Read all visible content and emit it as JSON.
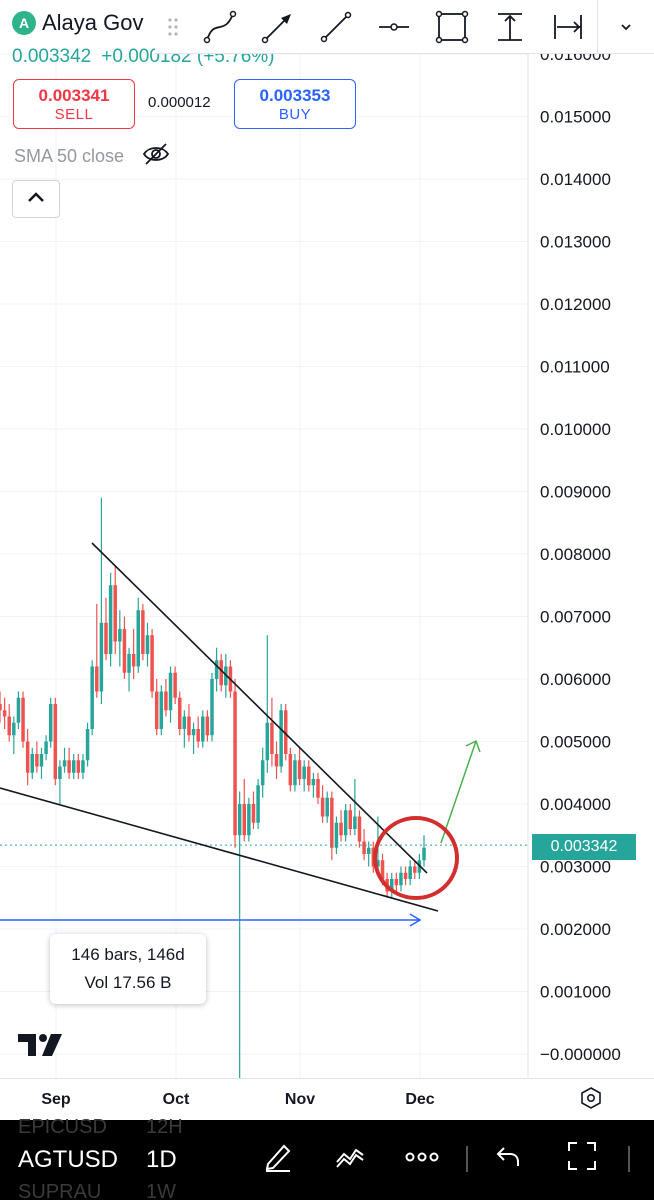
{
  "header": {
    "logo_letter": "A",
    "symbol_name": "Alaya Gov",
    "last_price": "0.003342",
    "change": "+0.000182 (+5.76%)",
    "sell": {
      "price": "0.003341",
      "label": "SELL"
    },
    "spread": "0.000012",
    "buy": {
      "price": "0.003353",
      "label": "BUY"
    },
    "indicator_label": "SMA 50 close"
  },
  "toolbar": {
    "tools": [
      "trend-line-tool",
      "arrow-tool",
      "ray-tool",
      "horizontal-line-tool",
      "rectangle-tool",
      "price-range-tool",
      "date-range-tool"
    ]
  },
  "price_axis": {
    "ticks": [
      "0.016000",
      "0.015000",
      "0.014000",
      "0.013000",
      "0.012000",
      "0.011000",
      "0.010000",
      "0.009000",
      "0.008000",
      "0.007000",
      "0.006000",
      "0.005000",
      "0.004000",
      "0.003000",
      "0.002000",
      "0.001000",
      "−0.000000"
    ],
    "current_price_label": "0.003342"
  },
  "time_axis": {
    "months": [
      "Sep",
      "Oct",
      "Nov",
      "Dec"
    ]
  },
  "measurement": {
    "bars": "146 bars, 146d",
    "volume": "Vol 17.56 B"
  },
  "bottom_bar": {
    "symbol": "AGTUSD",
    "interval": "1D",
    "ghost_above_symbol": "EPICUSD",
    "ghost_above_interval": "12H",
    "ghost_below_symbol": "SUPRAU",
    "ghost_below_interval": "1W"
  },
  "colors": {
    "up": "#26a69a",
    "down": "#ef5350",
    "highlight_circle": "#d32f2f",
    "projection_arrow": "#4caf50",
    "measure_arrow": "#2962ff"
  },
  "chart_data": {
    "type": "candlestick",
    "y_range": [
      -0.0001,
      0.0161
    ],
    "current_price": 0.003342,
    "price_levels": [
      0.016,
      0.015,
      0.014,
      0.013,
      0.012,
      0.011,
      0.01,
      0.009,
      0.008,
      0.007,
      0.006,
      0.005,
      0.004,
      0.003,
      0.002,
      0.001,
      0.0
    ],
    "candles": [
      [
        0.0056,
        0.0058,
        0.0053,
        0.0055
      ],
      [
        0.0055,
        0.0057,
        0.0052,
        0.0054
      ],
      [
        0.0054,
        0.0056,
        0.005,
        0.0051
      ],
      [
        0.0051,
        0.0054,
        0.0048,
        0.0053
      ],
      [
        0.0053,
        0.0058,
        0.0052,
        0.0057
      ],
      [
        0.0057,
        0.0058,
        0.0049,
        0.005
      ],
      [
        0.005,
        0.0052,
        0.0043,
        0.0045
      ],
      [
        0.0045,
        0.0049,
        0.0044,
        0.0048
      ],
      [
        0.0048,
        0.005,
        0.0045,
        0.0046
      ],
      [
        0.0046,
        0.0049,
        0.0044,
        0.0048
      ],
      [
        0.0048,
        0.0051,
        0.0047,
        0.005
      ],
      [
        0.005,
        0.0057,
        0.0049,
        0.0056
      ],
      [
        0.0056,
        0.0057,
        0.0043,
        0.0044
      ],
      [
        0.0044,
        0.0047,
        0.004,
        0.0046
      ],
      [
        0.0046,
        0.0049,
        0.0045,
        0.0047
      ],
      [
        0.0047,
        0.0049,
        0.0044,
        0.0045
      ],
      [
        0.0045,
        0.0048,
        0.0044,
        0.0047
      ],
      [
        0.0047,
        0.0048,
        0.0044,
        0.0045
      ],
      [
        0.0045,
        0.0048,
        0.0044,
        0.0047
      ],
      [
        0.0047,
        0.0053,
        0.0046,
        0.0052
      ],
      [
        0.0052,
        0.0063,
        0.0051,
        0.0062
      ],
      [
        0.0062,
        0.0072,
        0.0057,
        0.0058
      ],
      [
        0.0058,
        0.0089,
        0.0056,
        0.0069
      ],
      [
        0.0069,
        0.0073,
        0.0063,
        0.0064
      ],
      [
        0.0064,
        0.0077,
        0.0062,
        0.0075
      ],
      [
        0.0075,
        0.0078,
        0.0064,
        0.0066
      ],
      [
        0.0066,
        0.0071,
        0.0062,
        0.0068
      ],
      [
        0.0068,
        0.007,
        0.006,
        0.0061
      ],
      [
        0.0061,
        0.0065,
        0.0058,
        0.0064
      ],
      [
        0.0064,
        0.0068,
        0.006,
        0.0062
      ],
      [
        0.0062,
        0.0073,
        0.0061,
        0.0071
      ],
      [
        0.0071,
        0.0072,
        0.0063,
        0.0064
      ],
      [
        0.0064,
        0.0069,
        0.0062,
        0.0067
      ],
      [
        0.0067,
        0.0068,
        0.0057,
        0.0058
      ],
      [
        0.0058,
        0.006,
        0.0051,
        0.0052
      ],
      [
        0.0052,
        0.0059,
        0.0051,
        0.0058
      ],
      [
        0.0058,
        0.006,
        0.0054,
        0.0055
      ],
      [
        0.0055,
        0.0062,
        0.0053,
        0.0061
      ],
      [
        0.0061,
        0.0062,
        0.0056,
        0.0057
      ],
      [
        0.0057,
        0.0058,
        0.0051,
        0.0052
      ],
      [
        0.0052,
        0.0055,
        0.0049,
        0.0054
      ],
      [
        0.0054,
        0.0056,
        0.005,
        0.0051
      ],
      [
        0.0051,
        0.0053,
        0.0048,
        0.0052
      ],
      [
        0.0052,
        0.0054,
        0.0049,
        0.005
      ],
      [
        0.005,
        0.0055,
        0.0049,
        0.0054
      ],
      [
        0.0054,
        0.0055,
        0.005,
        0.0051
      ],
      [
        0.0051,
        0.0061,
        0.005,
        0.006
      ],
      [
        0.006,
        0.0065,
        0.0058,
        0.0063
      ],
      [
        0.0063,
        0.0064,
        0.0058,
        0.0059
      ],
      [
        0.0059,
        0.0064,
        0.0057,
        0.0062
      ],
      [
        0.0062,
        0.0063,
        0.0057,
        0.0058
      ],
      [
        0.0058,
        0.006,
        0.0033,
        0.0035
      ],
      [
        0.0035,
        0.0042,
        -0.0005,
        0.004
      ],
      [
        0.004,
        0.0044,
        0.0034,
        0.0035
      ],
      [
        0.0035,
        0.0041,
        0.0034,
        0.004
      ],
      [
        0.004,
        0.0042,
        0.0036,
        0.0037
      ],
      [
        0.0037,
        0.0044,
        0.0036,
        0.0043
      ],
      [
        0.0043,
        0.0049,
        0.0041,
        0.0047
      ],
      [
        0.0047,
        0.0067,
        0.0045,
        0.0053
      ],
      [
        0.0053,
        0.0057,
        0.0046,
        0.0048
      ],
      [
        0.0048,
        0.005,
        0.0044,
        0.0046
      ],
      [
        0.0046,
        0.0056,
        0.0045,
        0.0055
      ],
      [
        0.0055,
        0.0056,
        0.0047,
        0.0048
      ],
      [
        0.0048,
        0.0049,
        0.0042,
        0.0043
      ],
      [
        0.0043,
        0.0048,
        0.0042,
        0.0047
      ],
      [
        0.0047,
        0.0049,
        0.0043,
        0.0044
      ],
      [
        0.0044,
        0.0047,
        0.0042,
        0.0046
      ],
      [
        0.0046,
        0.0047,
        0.0042,
        0.0043
      ],
      [
        0.0043,
        0.0045,
        0.0041,
        0.0044
      ],
      [
        0.0044,
        0.0045,
        0.004,
        0.0041
      ],
      [
        0.0041,
        0.0043,
        0.0037,
        0.0038
      ],
      [
        0.0038,
        0.0042,
        0.0037,
        0.0041
      ],
      [
        0.0041,
        0.0042,
        0.0031,
        0.0033
      ],
      [
        0.0033,
        0.0038,
        0.0032,
        0.0037
      ],
      [
        0.0037,
        0.0039,
        0.0034,
        0.0035
      ],
      [
        0.0035,
        0.004,
        0.0034,
        0.0039
      ],
      [
        0.0039,
        0.004,
        0.0035,
        0.0036
      ],
      [
        0.0036,
        0.0044,
        0.0035,
        0.0038
      ],
      [
        0.0038,
        0.0039,
        0.0033,
        0.0034
      ],
      [
        0.0034,
        0.0036,
        0.0031,
        0.0032
      ],
      [
        0.0032,
        0.0034,
        0.003,
        0.0033
      ],
      [
        0.0033,
        0.0034,
        0.0029,
        0.003
      ],
      [
        0.003,
        0.0038,
        0.0029,
        0.0031
      ],
      [
        0.0031,
        0.0032,
        0.0027,
        0.0028
      ],
      [
        0.0028,
        0.0029,
        0.0025,
        0.0026
      ],
      [
        0.0026,
        0.0029,
        0.0025,
        0.0028
      ],
      [
        0.0028,
        0.0029,
        0.0026,
        0.0027
      ],
      [
        0.0027,
        0.003,
        0.0026,
        0.0029
      ],
      [
        0.0029,
        0.003,
        0.0027,
        0.0028
      ],
      [
        0.0028,
        0.0031,
        0.0027,
        0.003
      ],
      [
        0.003,
        0.0031,
        0.0028,
        0.0029
      ],
      [
        0.0029,
        0.0032,
        0.0028,
        0.0031
      ],
      [
        0.0031,
        0.0035,
        0.003,
        0.0033
      ]
    ]
  }
}
